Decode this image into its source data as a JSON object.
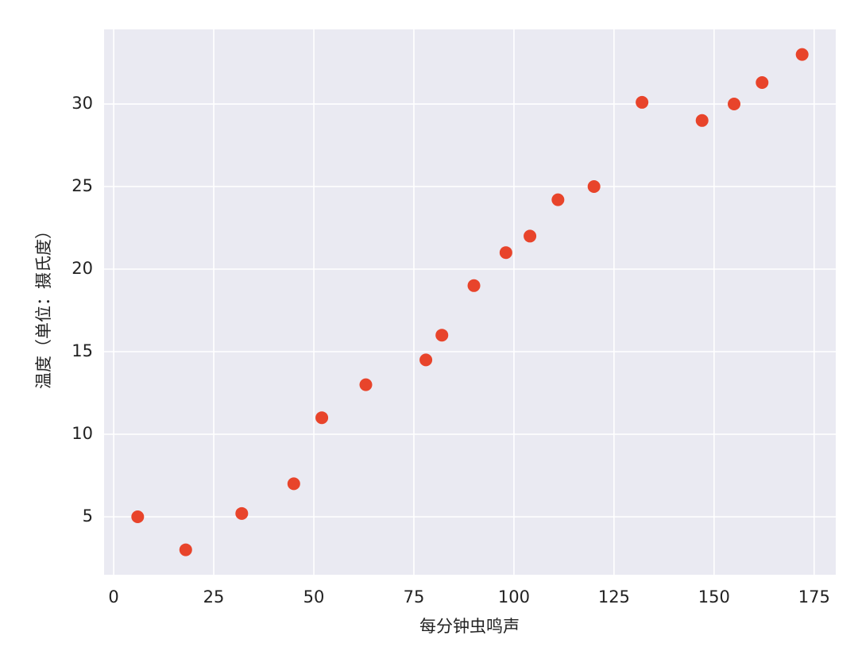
{
  "chart_data": {
    "type": "scatter",
    "x_label": "每分钟虫鸣声",
    "y_label": "温度（单位：摄氏度）",
    "x": [
      6,
      18,
      32,
      45,
      52,
      63,
      78,
      82,
      90,
      98,
      104,
      111,
      120,
      132,
      147,
      155,
      162,
      172
    ],
    "values": [
      5,
      3,
      5.2,
      7,
      11,
      13,
      14.5,
      16,
      19,
      21,
      22,
      24.2,
      25,
      30.1,
      29,
      30,
      31.3,
      33
    ],
    "color": "#e8442b",
    "xlim": [
      -2.4,
      180.4
    ],
    "xticks": [
      0,
      25,
      50,
      75,
      100,
      125,
      150,
      175
    ],
    "ylim": [
      1.49,
      34.52
    ],
    "yticks": [
      5,
      10,
      15,
      20,
      25,
      30
    ],
    "grid": true
  }
}
